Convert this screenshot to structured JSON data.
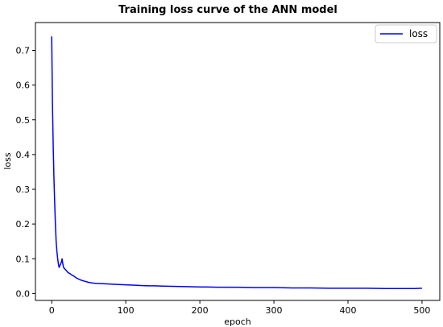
{
  "chart_data": {
    "type": "line",
    "title": "Training loss curve of the ANN model",
    "xlabel": "epoch",
    "ylabel": "loss",
    "xlim": [
      -22,
      524
    ],
    "ylim": [
      -0.02,
      0.78
    ],
    "xticks": [
      0,
      100,
      200,
      300,
      400,
      500
    ],
    "yticks": [
      0.0,
      0.1,
      0.2,
      0.3,
      0.4,
      0.5,
      0.6,
      0.7
    ],
    "ytick_labels": [
      "0.0",
      "0.1",
      "0.2",
      "0.3",
      "0.4",
      "0.5",
      "0.6",
      "0.7"
    ],
    "grid": false,
    "legend": "top-right",
    "series": [
      {
        "name": "loss",
        "color": "#0000ff",
        "x": [
          0,
          1,
          2,
          3,
          4,
          5,
          6,
          7,
          8,
          9,
          10,
          11,
          12,
          13,
          14,
          15,
          16,
          17,
          18,
          19,
          20,
          22,
          24,
          26,
          28,
          30,
          33,
          36,
          40,
          45,
          50,
          55,
          60,
          70,
          80,
          90,
          100,
          110,
          120,
          130,
          140,
          150,
          175,
          200,
          225,
          250,
          275,
          300,
          325,
          350,
          375,
          400,
          425,
          450,
          475,
          490,
          500
        ],
        "y": [
          0.74,
          0.55,
          0.42,
          0.33,
          0.26,
          0.2,
          0.15,
          0.12,
          0.1,
          0.085,
          0.075,
          0.08,
          0.085,
          0.09,
          0.1,
          0.085,
          0.075,
          0.072,
          0.07,
          0.068,
          0.065,
          0.06,
          0.058,
          0.055,
          0.052,
          0.05,
          0.045,
          0.042,
          0.038,
          0.035,
          0.032,
          0.03,
          0.029,
          0.028,
          0.027,
          0.026,
          0.025,
          0.024,
          0.023,
          0.022,
          0.022,
          0.021,
          0.02,
          0.019,
          0.018,
          0.018,
          0.017,
          0.017,
          0.016,
          0.016,
          0.015,
          0.015,
          0.015,
          0.014,
          0.014,
          0.014,
          0.015
        ]
      }
    ]
  }
}
